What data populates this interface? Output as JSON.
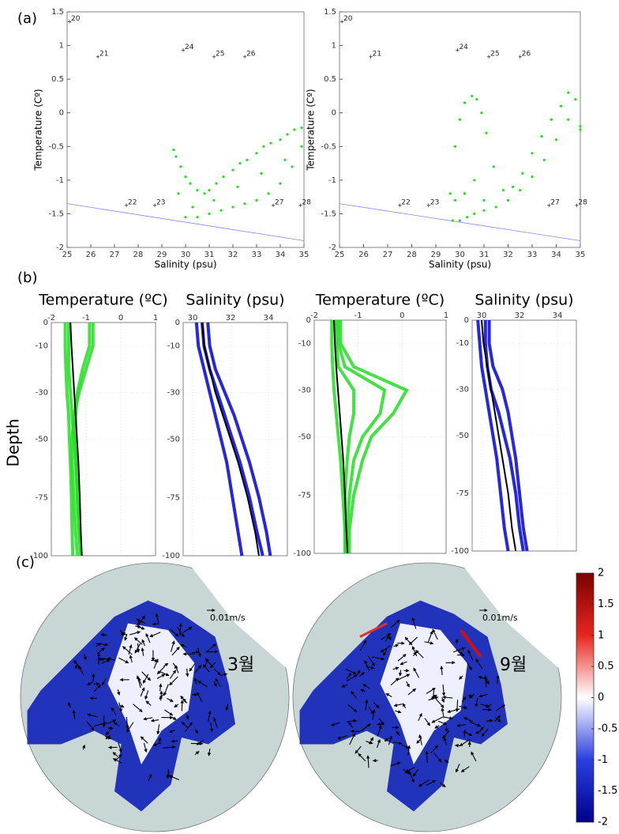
{
  "chart_data": [
    {
      "type": "scatter",
      "panel_label": "(a)",
      "xlabel": "Salinity (psu)",
      "ylabel": "Temperature (Cº)",
      "xlim": [
        25,
        35
      ],
      "ylim": [
        -2,
        1.5
      ],
      "xticks": [
        25,
        26,
        27,
        28,
        29,
        30,
        31,
        32,
        33,
        34,
        35
      ],
      "yticks": [
        -2,
        -1.5,
        -1,
        -0.5,
        0,
        0.5,
        1,
        1.5
      ],
      "grid": false,
      "series": [
        {
          "color": "#22dd22",
          "x": [
            29.5,
            29.6,
            29.8,
            30,
            30.2,
            30.5,
            30.8,
            31,
            31.3,
            31.6,
            32,
            32.3,
            32.6,
            33,
            33.3,
            33.6,
            34,
            34.3,
            34.6,
            34.9,
            30,
            30.5,
            31,
            31.5,
            32,
            32.5,
            33,
            33.5,
            34,
            34.5,
            34.9,
            29.7,
            30.3,
            31.2,
            32.2,
            33.2,
            34.2
          ],
          "values": [
            -0.55,
            -0.65,
            -0.8,
            -0.95,
            -1.05,
            -1.15,
            -1.2,
            -1.15,
            -1.05,
            -0.95,
            -0.85,
            -0.75,
            -0.7,
            -0.6,
            -0.5,
            -0.45,
            -0.4,
            -0.32,
            -0.25,
            -0.22,
            -1.55,
            -1.55,
            -1.5,
            -1.45,
            -1.4,
            -1.35,
            -1.3,
            -1.2,
            -1.05,
            -0.8,
            -0.5,
            -1.2,
            -1.4,
            -1.3,
            -1.1,
            -0.9,
            -0.7
          ]
        }
      ],
      "lines": [
        {
          "color": "#8888ee",
          "x": [
            25,
            35
          ],
          "values": [
            -1.35,
            -1.9
          ]
        }
      ],
      "annotations": [
        {
          "text": "20",
          "x": 25.1,
          "y": 1.4
        },
        {
          "text": "21",
          "x": 26.3,
          "y": 0.88
        },
        {
          "text": "24",
          "x": 29.9,
          "y": 0.98
        },
        {
          "text": "25",
          "x": 31.2,
          "y": 0.88
        },
        {
          "text": "26",
          "x": 32.5,
          "y": 0.88
        },
        {
          "text": "22",
          "x": 27.5,
          "y": -1.33
        },
        {
          "text": "23",
          "x": 28.7,
          "y": -1.33
        },
        {
          "text": "27",
          "x": 33.7,
          "y": -1.33
        },
        {
          "text": "28",
          "x": 34.85,
          "y": -1.33
        }
      ]
    },
    {
      "type": "scatter",
      "xlabel": "Salinity (psu)",
      "ylabel": "Temperature (Cº)",
      "xlim": [
        25,
        35
      ],
      "ylim": [
        -2,
        1.5
      ],
      "xticks": [
        25,
        26,
        27,
        28,
        29,
        30,
        31,
        32,
        33,
        34,
        35
      ],
      "yticks": [
        -2,
        -1.5,
        -1,
        -0.5,
        0,
        0.5,
        1,
        1.5
      ],
      "grid": false,
      "series": [
        {
          "color": "#22dd22",
          "x": [
            29.6,
            29.8,
            30,
            30.2,
            30.5,
            30.7,
            30.9,
            31.1,
            31.4,
            31.8,
            32.2,
            32.6,
            33,
            33.4,
            33.8,
            34.2,
            34.5,
            34.8,
            35,
            29.7,
            30,
            30.3,
            30.6,
            31,
            31.5,
            32,
            32.5,
            33,
            33.5,
            34,
            34.5,
            35,
            29.8,
            30.2,
            30.6,
            31
          ],
          "values": [
            -1.2,
            -0.5,
            -0.1,
            0.15,
            0.25,
            0.2,
            0,
            -0.3,
            -0.8,
            -1.15,
            -1.1,
            -0.9,
            -0.6,
            -0.35,
            -0.1,
            0.1,
            0.3,
            0.2,
            -0.2,
            -1.6,
            -1.6,
            -1.55,
            -1.5,
            -1.45,
            -1.4,
            -1.3,
            -1.15,
            -0.95,
            -0.7,
            -0.4,
            -0.1,
            -0.25,
            -1.3,
            -1.2,
            -1,
            -1.3
          ]
        }
      ],
      "lines": [
        {
          "color": "#8888ee",
          "x": [
            25,
            35
          ],
          "values": [
            -1.35,
            -1.9
          ]
        }
      ],
      "annotations": [
        {
          "text": "20",
          "x": 25.1,
          "y": 1.4
        },
        {
          "text": "21",
          "x": 26.3,
          "y": 0.88
        },
        {
          "text": "24",
          "x": 29.9,
          "y": 0.98
        },
        {
          "text": "25",
          "x": 31.2,
          "y": 0.88
        },
        {
          "text": "26",
          "x": 32.5,
          "y": 0.88
        },
        {
          "text": "22",
          "x": 27.5,
          "y": -1.33
        },
        {
          "text": "23",
          "x": 28.7,
          "y": -1.33
        },
        {
          "text": "27",
          "x": 33.7,
          "y": -1.33
        },
        {
          "text": "28",
          "x": 34.85,
          "y": -1.33
        }
      ]
    },
    {
      "type": "profile",
      "panel_label": "(b)",
      "title": "Temperature (ºC)",
      "ylabel": "Depth",
      "xlim": [
        -2,
        1
      ],
      "ylim": [
        -100,
        0
      ],
      "xticks": [
        -2,
        -1,
        0,
        1
      ],
      "yticks": [
        0,
        -10,
        -30,
        -50,
        -75,
        -100
      ],
      "grid": true,
      "y": [
        0,
        -10,
        -20,
        -30,
        -40,
        -50,
        -60,
        -75,
        -90,
        -100
      ],
      "series": [
        {
          "color": "#22dd22",
          "values": [
            -1.6,
            -1.6,
            -1.58,
            -1.55,
            -1.5,
            -1.48,
            -1.45,
            -1.42,
            -1.4,
            -1.38
          ]
        },
        {
          "color": "#22dd22",
          "values": [
            -0.8,
            -0.8,
            -1,
            -1.2,
            -1.35,
            -1.4,
            -1.4,
            -1.35,
            -1.3,
            -1.25
          ]
        },
        {
          "color": "#22dd22",
          "values": [
            -0.9,
            -0.9,
            -1.1,
            -1.25,
            -1.3,
            -1.3,
            -1.28,
            -1.25,
            -1.2,
            -1.15
          ]
        },
        {
          "color": "#22dd22",
          "values": [
            -1.5,
            -1.5,
            -1.5,
            -1.45,
            -1.4,
            -1.35,
            -1.3,
            -1.25,
            -1.2,
            -1.15
          ]
        },
        {
          "color": "#000000",
          "values": [
            -1.45,
            -1.42,
            -1.38,
            -1.34,
            -1.3,
            -1.26,
            -1.22,
            -1.18,
            -1.15,
            -1.12
          ]
        }
      ]
    },
    {
      "type": "profile",
      "title": "Salinity (psu)",
      "xlim": [
        29.5,
        35
      ],
      "ylim": [
        -100,
        0
      ],
      "xticks": [
        30,
        32,
        34
      ],
      "yticks": [
        0,
        -10,
        -30,
        -50,
        -75,
        -100
      ],
      "grid": true,
      "y": [
        0,
        -10,
        -20,
        -30,
        -40,
        -50,
        -60,
        -75,
        -90,
        -100
      ],
      "series": [
        {
          "color": "#0000dd",
          "values": [
            30.2,
            30.3,
            30.6,
            30.9,
            31.2,
            31.5,
            31.8,
            32.1,
            32.4,
            32.6
          ]
        },
        {
          "color": "#0000dd",
          "values": [
            30.8,
            30.9,
            31.2,
            31.7,
            32.2,
            32.6,
            33,
            33.5,
            33.9,
            34.1
          ]
        },
        {
          "color": "#0000dd",
          "values": [
            30.5,
            30.6,
            30.9,
            31.3,
            31.7,
            32.1,
            32.5,
            33,
            33.4,
            33.7
          ]
        },
        {
          "color": "#000000",
          "values": [
            30.5,
            30.6,
            30.9,
            31.2,
            31.6,
            32,
            32.4,
            32.9,
            33.3,
            33.5
          ]
        }
      ]
    },
    {
      "type": "profile",
      "title": "Temperature (ºC)",
      "xlim": [
        -2,
        1
      ],
      "ylim": [
        -100,
        0
      ],
      "xticks": [
        -2,
        -1,
        0,
        1
      ],
      "yticks": [
        0,
        -10,
        -30,
        -50,
        -75,
        -100
      ],
      "grid": true,
      "y": [
        0,
        -10,
        -20,
        -30,
        -40,
        -50,
        -60,
        -75,
        -90,
        -100
      ],
      "series": [
        {
          "color": "#22dd22",
          "values": [
            -1.6,
            -1.6,
            -1.58,
            -1.55,
            -1.5,
            -1.45,
            -1.4,
            -1.35,
            -1.3,
            -1.3
          ]
        },
        {
          "color": "#22dd22",
          "values": [
            -1.4,
            -1.4,
            -1.1,
            0.1,
            -0.2,
            -0.7,
            -0.9,
            -1.1,
            -1.2,
            -1.2
          ]
        },
        {
          "color": "#22dd22",
          "values": [
            -1.45,
            -1.45,
            -1.3,
            -0.4,
            -0.5,
            -0.9,
            -1.1,
            -1.2,
            -1.25,
            -1.25
          ]
        },
        {
          "color": "#22dd22",
          "values": [
            -1.5,
            -1.5,
            -1.45,
            -1.1,
            -1.1,
            -1.2,
            -1.25,
            -1.3,
            -1.3,
            -1.28
          ]
        },
        {
          "color": "#000000",
          "values": [
            -1.55,
            -1.53,
            -1.5,
            -1.46,
            -1.42,
            -1.38,
            -1.34,
            -1.3,
            -1.27,
            -1.24
          ]
        }
      ]
    },
    {
      "type": "profile",
      "title": "Salinity (psu)",
      "xlim": [
        29.5,
        35
      ],
      "ylim": [
        -100,
        0
      ],
      "xticks": [
        30,
        32,
        34
      ],
      "yticks": [
        0,
        -10,
        -30,
        -50,
        -75,
        -100
      ],
      "grid": true,
      "y": [
        0,
        -10,
        -20,
        -30,
        -40,
        -50,
        -60,
        -75,
        -90,
        -100
      ],
      "series": [
        {
          "color": "#0000dd",
          "values": [
            29.8,
            29.9,
            30,
            30.2,
            30.4,
            30.6,
            30.8,
            31,
            31.2,
            31.4
          ]
        },
        {
          "color": "#0000dd",
          "values": [
            30.4,
            30.4,
            30.6,
            31.1,
            31.4,
            31.6,
            31.8,
            32,
            32.2,
            32.4
          ]
        },
        {
          "color": "#0000dd",
          "values": [
            30.2,
            30.2,
            30.3,
            30.5,
            30.9,
            31.2,
            31.5,
            31.8,
            32,
            32.2
          ]
        },
        {
          "color": "#000000",
          "values": [
            30,
            30.1,
            30.3,
            30.5,
            30.7,
            30.9,
            31.1,
            31.4,
            31.6,
            31.8
          ]
        }
      ]
    },
    {
      "type": "map",
      "panel_label": "(c)",
      "scale_label": "0.01m/s",
      "panels": [
        {
          "label": "3월"
        },
        {
          "label": "9월"
        }
      ],
      "clim": [
        -2,
        2
      ],
      "cticks": [
        -2,
        -1.5,
        -1,
        -0.5,
        0,
        0.5,
        1,
        1.5,
        2
      ],
      "colors": [
        "#00008b",
        "#2a3fe0",
        "#ffffff",
        "#e8271e",
        "#7a0000"
      ]
    }
  ]
}
